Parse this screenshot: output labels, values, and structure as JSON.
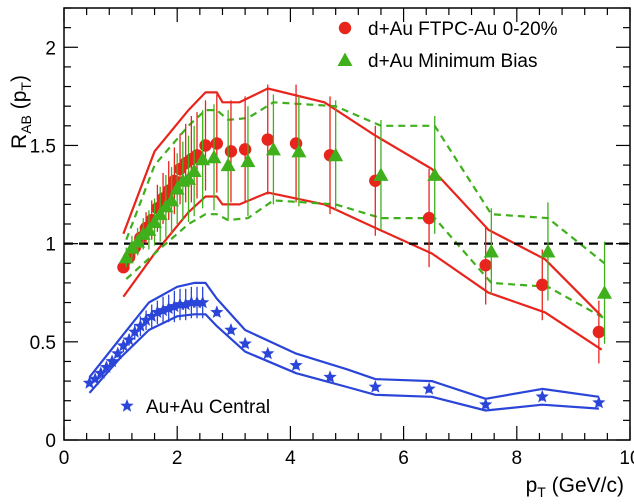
{
  "chart_data": {
    "type": "scatter",
    "title": "",
    "xlabel": {
      "main": "p",
      "sub": "T",
      "tail": " (GeV/c)"
    },
    "ylabel": {
      "main": "R",
      "sub": "AB",
      "mid": " (p",
      "sub2": "T",
      "tail": ")"
    },
    "xlim": [
      0,
      10
    ],
    "ylim": [
      0,
      2.2
    ],
    "x_major_ticks": [
      0,
      2,
      4,
      6,
      8,
      10
    ],
    "y_major_ticks": [
      0,
      0.5,
      1,
      1.5,
      2
    ],
    "x_tick_labels": [
      "0",
      "2",
      "4",
      "6",
      "8",
      "10"
    ],
    "y_tick_labels": [
      "0",
      "0.5",
      "1",
      "1.5",
      "2"
    ],
    "reference_line": {
      "y": 1,
      "style": "dashed",
      "color": "#000000"
    },
    "colors": {
      "red": "#e8251c",
      "green": "#3fb01c",
      "blue": "#2a45d8",
      "axis": "#000000"
    },
    "series": [
      {
        "name": "d+Au FTPC-Au 0-20%",
        "marker": "circle",
        "color": "#e8251c",
        "points": [
          [
            1.05,
            0.88,
            0.03
          ],
          [
            1.15,
            0.93,
            0.04
          ],
          [
            1.25,
            0.98,
            0.05
          ],
          [
            1.35,
            1.03,
            0.06
          ],
          [
            1.45,
            1.08,
            0.08
          ],
          [
            1.55,
            1.12,
            0.1
          ],
          [
            1.65,
            1.18,
            0.12
          ],
          [
            1.75,
            1.23,
            0.13
          ],
          [
            1.85,
            1.27,
            0.15
          ],
          [
            1.95,
            1.32,
            0.17
          ],
          [
            2.05,
            1.38,
            0.18
          ],
          [
            2.15,
            1.41,
            0.2
          ],
          [
            2.25,
            1.43,
            0.22
          ],
          [
            2.35,
            1.45,
            0.22
          ],
          [
            2.5,
            1.5,
            0.23
          ],
          [
            2.7,
            1.51,
            0.25
          ],
          [
            2.95,
            1.47,
            0.26
          ],
          [
            3.2,
            1.48,
            0.27
          ],
          [
            3.6,
            1.53,
            0.28
          ],
          [
            4.1,
            1.51,
            0.3
          ],
          [
            4.7,
            1.45,
            0.3
          ],
          [
            5.5,
            1.32,
            0.28
          ],
          [
            6.45,
            1.13,
            0.25
          ],
          [
            7.45,
            0.89,
            0.2
          ],
          [
            8.45,
            0.79,
            0.18
          ],
          [
            9.45,
            0.55,
            0.16
          ]
        ]
      },
      {
        "name": "d+Au Minimum Bias",
        "marker": "triangle",
        "color": "#3fb01c",
        "points": [
          [
            1.1,
            0.93,
            0.05
          ],
          [
            1.2,
            0.98,
            0.06
          ],
          [
            1.3,
            1.01,
            0.07
          ],
          [
            1.4,
            1.05,
            0.08
          ],
          [
            1.5,
            1.07,
            0.1
          ],
          [
            1.6,
            1.11,
            0.12
          ],
          [
            1.7,
            1.15,
            0.14
          ],
          [
            1.8,
            1.19,
            0.16
          ],
          [
            1.9,
            1.22,
            0.17
          ],
          [
            2.0,
            1.28,
            0.18
          ],
          [
            2.1,
            1.32,
            0.2
          ],
          [
            2.2,
            1.33,
            0.22
          ],
          [
            2.3,
            1.37,
            0.23
          ],
          [
            2.45,
            1.43,
            0.25
          ],
          [
            2.65,
            1.44,
            0.27
          ],
          [
            2.9,
            1.4,
            0.28
          ],
          [
            3.25,
            1.42,
            0.28
          ],
          [
            3.7,
            1.48,
            0.28
          ],
          [
            4.15,
            1.47,
            0.28
          ],
          [
            4.8,
            1.45,
            0.28
          ],
          [
            5.6,
            1.35,
            0.28
          ],
          [
            6.55,
            1.35,
            0.3
          ],
          [
            7.55,
            0.96,
            0.22
          ],
          [
            8.55,
            0.96,
            0.25
          ],
          [
            9.55,
            0.75,
            0.26
          ]
        ]
      },
      {
        "name": "Au+Au Central",
        "marker": "star",
        "color": "#2a45d8",
        "points": [
          [
            0.45,
            0.29,
            0.01
          ],
          [
            0.55,
            0.31,
            0.01
          ],
          [
            0.65,
            0.34,
            0.02
          ],
          [
            0.75,
            0.37,
            0.02
          ],
          [
            0.85,
            0.4,
            0.02
          ],
          [
            0.95,
            0.44,
            0.02
          ],
          [
            1.05,
            0.48,
            0.03
          ],
          [
            1.15,
            0.51,
            0.03
          ],
          [
            1.25,
            0.55,
            0.04
          ],
          [
            1.35,
            0.58,
            0.05
          ],
          [
            1.45,
            0.61,
            0.05
          ],
          [
            1.55,
            0.63,
            0.06
          ],
          [
            1.65,
            0.65,
            0.06
          ],
          [
            1.75,
            0.66,
            0.07
          ],
          [
            1.85,
            0.67,
            0.07
          ],
          [
            1.95,
            0.68,
            0.08
          ],
          [
            2.05,
            0.69,
            0.08
          ],
          [
            2.15,
            0.69,
            0.08
          ],
          [
            2.25,
            0.7,
            0.08
          ],
          [
            2.35,
            0.7,
            0.08
          ],
          [
            2.45,
            0.7,
            0.08
          ],
          [
            2.7,
            0.65,
            0.02
          ],
          [
            2.95,
            0.56,
            0.02
          ],
          [
            3.2,
            0.49,
            0.02
          ],
          [
            3.6,
            0.44,
            0.02
          ],
          [
            4.1,
            0.38,
            0.02
          ],
          [
            4.7,
            0.32,
            0.02
          ],
          [
            5.5,
            0.27,
            0.02
          ],
          [
            6.45,
            0.26,
            0.02
          ],
          [
            7.45,
            0.18,
            0.02
          ],
          [
            8.45,
            0.22,
            0.02
          ],
          [
            9.45,
            0.19,
            0.02
          ]
        ]
      }
    ],
    "bands": [
      {
        "name": "d+Au FTPC-Au 0-20% systematic band",
        "color": "#e8251c",
        "style": "solid",
        "upper": [
          [
            1.05,
            1.05
          ],
          [
            1.6,
            1.47
          ],
          [
            2.2,
            1.68
          ],
          [
            2.5,
            1.77
          ],
          [
            2.7,
            1.77
          ],
          [
            2.8,
            1.72
          ],
          [
            3.1,
            1.72
          ],
          [
            3.6,
            1.79
          ],
          [
            4.6,
            1.72
          ],
          [
            5.5,
            1.55
          ],
          [
            6.5,
            1.38
          ],
          [
            7.5,
            1.07
          ],
          [
            8.5,
            0.92
          ],
          [
            9.5,
            0.63
          ]
        ],
        "lower": [
          [
            1.05,
            0.73
          ],
          [
            1.6,
            0.95
          ],
          [
            2.2,
            1.16
          ],
          [
            2.5,
            1.24
          ],
          [
            2.7,
            1.24
          ],
          [
            2.8,
            1.2
          ],
          [
            3.1,
            1.2
          ],
          [
            3.6,
            1.26
          ],
          [
            4.6,
            1.2
          ],
          [
            5.5,
            1.08
          ],
          [
            6.5,
            0.95
          ],
          [
            7.5,
            0.75
          ],
          [
            8.5,
            0.65
          ],
          [
            9.5,
            0.46
          ]
        ]
      },
      {
        "name": "d+Au Minimum Bias systematic band",
        "color": "#3fb01c",
        "style": "dashed",
        "upper": [
          [
            1.1,
            1.02
          ],
          [
            1.6,
            1.4
          ],
          [
            2.2,
            1.6
          ],
          [
            2.5,
            1.68
          ],
          [
            2.7,
            1.68
          ],
          [
            2.9,
            1.63
          ],
          [
            3.25,
            1.64
          ],
          [
            3.7,
            1.72
          ],
          [
            4.8,
            1.7
          ],
          [
            5.6,
            1.6
          ],
          [
            6.55,
            1.6
          ],
          [
            7.55,
            1.15
          ],
          [
            8.55,
            1.13
          ],
          [
            9.55,
            0.9
          ]
        ],
        "lower": [
          [
            1.1,
            0.82
          ],
          [
            1.6,
            0.95
          ],
          [
            2.2,
            1.1
          ],
          [
            2.5,
            1.15
          ],
          [
            2.7,
            1.15
          ],
          [
            2.9,
            1.12
          ],
          [
            3.25,
            1.13
          ],
          [
            3.7,
            1.22
          ],
          [
            4.8,
            1.2
          ],
          [
            5.6,
            1.13
          ],
          [
            6.55,
            1.13
          ],
          [
            7.55,
            0.8
          ],
          [
            8.55,
            0.78
          ],
          [
            9.55,
            0.62
          ]
        ]
      },
      {
        "name": "Au+Au Central systematic band",
        "color": "#2a45d8",
        "style": "solid",
        "upper": [
          [
            0.45,
            0.32
          ],
          [
            1.0,
            0.52
          ],
          [
            1.5,
            0.7
          ],
          [
            2.0,
            0.78
          ],
          [
            2.3,
            0.8
          ],
          [
            2.5,
            0.8
          ],
          [
            2.7,
            0.72
          ],
          [
            3.2,
            0.56
          ],
          [
            4.1,
            0.44
          ],
          [
            5.0,
            0.36
          ],
          [
            5.5,
            0.31
          ],
          [
            6.5,
            0.3
          ],
          [
            7.45,
            0.21
          ],
          [
            8.45,
            0.26
          ],
          [
            9.45,
            0.22
          ]
        ],
        "lower": [
          [
            0.45,
            0.24
          ],
          [
            1.0,
            0.42
          ],
          [
            1.5,
            0.56
          ],
          [
            2.0,
            0.63
          ],
          [
            2.3,
            0.64
          ],
          [
            2.5,
            0.64
          ],
          [
            2.7,
            0.58
          ],
          [
            3.2,
            0.45
          ],
          [
            4.1,
            0.34
          ],
          [
            5.0,
            0.27
          ],
          [
            5.5,
            0.23
          ],
          [
            6.5,
            0.22
          ],
          [
            7.45,
            0.15
          ],
          [
            8.45,
            0.18
          ],
          [
            9.45,
            0.16
          ]
        ]
      }
    ],
    "legend": [
      {
        "label": "d+Au FTPC-Au 0-20%",
        "marker": "circle",
        "color": "#e8251c"
      },
      {
        "label": "d+Au Minimum Bias",
        "marker": "triangle",
        "color": "#3fb01c"
      },
      {
        "label": "Au+Au Central",
        "marker": "star",
        "color": "#2a45d8"
      }
    ]
  }
}
